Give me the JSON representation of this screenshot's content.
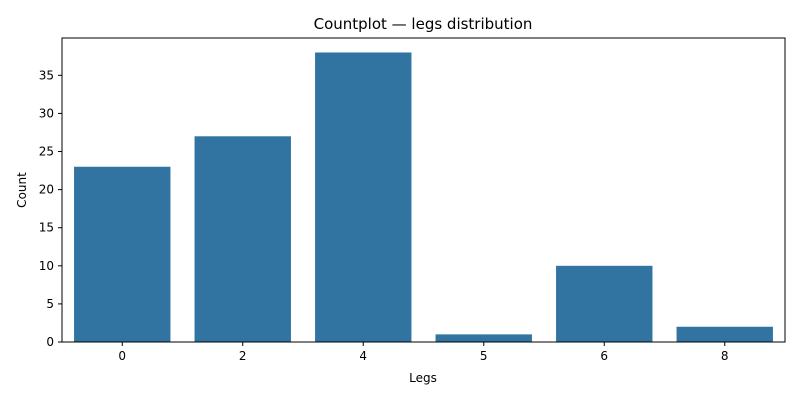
{
  "chart_data": {
    "type": "bar",
    "title": "Countplot — legs distribution",
    "xlabel": "Legs",
    "ylabel": "Count",
    "categories": [
      "0",
      "2",
      "4",
      "5",
      "6",
      "8"
    ],
    "values": [
      23,
      27,
      38,
      1,
      10,
      2
    ],
    "ylim": [
      0,
      39.9
    ],
    "yticks": [
      0,
      5,
      10,
      15,
      20,
      25,
      30,
      35
    ],
    "grid": false,
    "legend": "none",
    "bar_color": "#3274a1"
  }
}
